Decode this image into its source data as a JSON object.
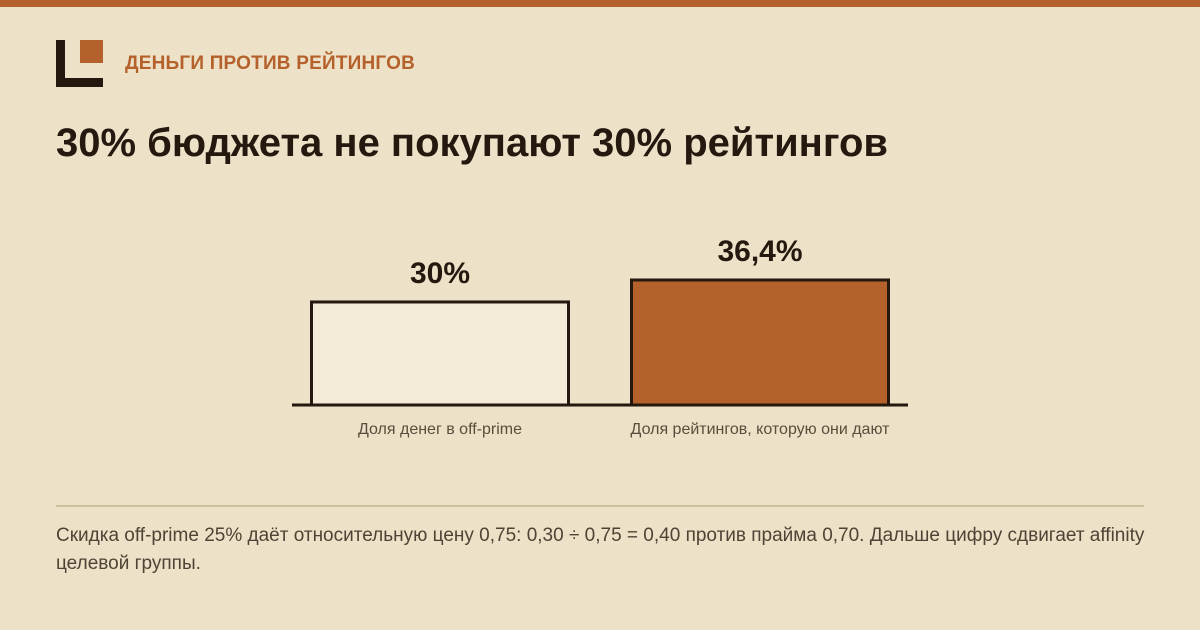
{
  "header": {
    "kicker": "ДЕНЬГИ ПРОТИВ РЕЙТИНГОВ",
    "headline": "30% бюджета не покупают 30% рейтингов"
  },
  "colors": {
    "accent": "#b5612b",
    "background": "#ede1c8",
    "ink": "#24180f",
    "bar_light": "#f3ead7"
  },
  "chart_data": {
    "type": "bar",
    "categories": [
      "Доля денег в off-prime",
      "Доля рейтингов, которую они дают"
    ],
    "values": [
      30,
      36.4
    ],
    "value_labels": [
      "30%",
      "36,4%"
    ],
    "bar_colors": [
      "#f3ead7",
      "#b5612b"
    ],
    "title": "",
    "xlabel": "",
    "ylabel": "",
    "ylim": [
      0,
      36.4
    ],
    "grid": false,
    "legend": "none"
  },
  "footnote": "Скидка off-prime 25% даёт относительную цену 0,75: 0,30 ÷ 0,75 = 0,40 против прайма 0,70. Дальше цифру сдвигает affinity целевой группы."
}
